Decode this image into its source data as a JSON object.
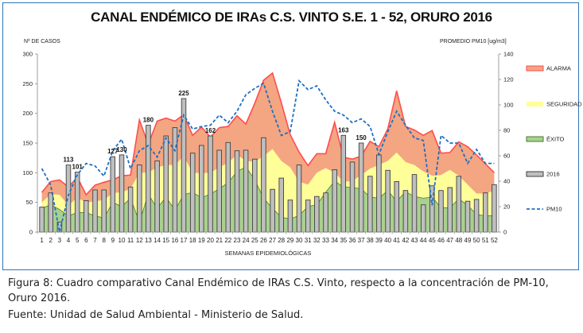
{
  "chart_data": {
    "type": "area+bar+line",
    "title": "CANAL ENDÉMICO DE IRAs C.S. VINTO S.E. 1 - 52,  ORURO 2016",
    "ylabel": "Nº DE CASOS",
    "y2label": "PROMEDIO PM10 [ug/m3]",
    "xlabel": "SEMANAS EPIDEMIOLÓGICAS",
    "ylim": [
      0,
      300
    ],
    "y2lim": [
      0,
      140
    ],
    "yticks": [
      0,
      50,
      100,
      150,
      200,
      250,
      300
    ],
    "y2ticks": [
      0,
      20,
      40,
      60,
      80,
      100,
      120,
      140
    ],
    "categories": [
      1,
      2,
      3,
      4,
      5,
      6,
      7,
      8,
      9,
      10,
      11,
      12,
      13,
      14,
      15,
      16,
      17,
      18,
      19,
      20,
      21,
      22,
      23,
      24,
      25,
      26,
      27,
      28,
      29,
      30,
      31,
      32,
      33,
      34,
      35,
      36,
      37,
      38,
      39,
      40,
      41,
      42,
      43,
      44,
      45,
      46,
      47,
      48,
      49,
      50,
      51,
      52
    ],
    "legend_position": "right",
    "series": [
      {
        "name": "ALARMA",
        "kind": "area",
        "color": "#f4a582",
        "stroke": "#ff4d4d",
        "values": [
          67,
          85,
          88,
          76,
          92,
          63,
          79,
          84,
          88,
          95,
          96,
          189,
          148,
          187,
          192,
          187,
          198,
          163,
          177,
          160,
          176,
          178,
          196,
          182,
          217,
          256,
          268,
          218,
          164,
          135,
          112,
          132,
          132,
          185,
          126,
          123,
          128,
          153,
          144,
          174,
          238,
          178,
          172,
          163,
          171,
          133,
          134,
          152,
          144,
          130,
          115,
          100
        ]
      },
      {
        "name": "SEGURIDAD",
        "kind": "area",
        "color": "#ffff99",
        "values": [
          50,
          64,
          63,
          45,
          58,
          50,
          52,
          54,
          66,
          67,
          73,
          100,
          100,
          109,
          113,
          113,
          128,
          100,
          99,
          100,
          109,
          117,
          130,
          120,
          118,
          128,
          140,
          120,
          109,
          85,
          80,
          100,
          108,
          100,
          85,
          86,
          96,
          107,
          113,
          120,
          134,
          118,
          113,
          102,
          95,
          96,
          105,
          95,
          80,
          65,
          65,
          70
        ]
      },
      {
        "name": "ÉXITO",
        "kind": "area",
        "color": "#a9d18e",
        "stroke": "#4e7a2e",
        "values": [
          40,
          46,
          38,
          27,
          33,
          33,
          27,
          24,
          50,
          43,
          57,
          17,
          64,
          40,
          59,
          37,
          63,
          67,
          58,
          64,
          73,
          83,
          102,
          110,
          88,
          57,
          40,
          25,
          22,
          28,
          43,
          46,
          67,
          86,
          76,
          75,
          73,
          59,
          57,
          70,
          52,
          68,
          60,
          57,
          59,
          41,
          41,
          56,
          45,
          30,
          27,
          28
        ]
      },
      {
        "name": "2016",
        "kind": "bar",
        "color": "#bfbfbf",
        "stroke": "#404040",
        "values": [
          42,
          66,
          17,
          113,
          101,
          53,
          71,
          71,
          127,
          130,
          76,
          113,
          180,
          120,
          162,
          176,
          225,
          133,
          146,
          162,
          138,
          151,
          137,
          138,
          123,
          159,
          72,
          91,
          54,
          113,
          54,
          60,
          66,
          105,
          163,
          118,
          150,
          94,
          130,
          104,
          85,
          70,
          97,
          46,
          78,
          70,
          75,
          94,
          52,
          55,
          66,
          80
        ]
      },
      {
        "name": "PM10",
        "kind": "line",
        "axis": "right",
        "color": "#1f6fc0",
        "values": [
          50,
          37,
          0,
          29,
          45,
          54,
          52,
          44,
          64,
          73,
          50,
          64,
          68,
          59,
          74,
          64,
          92,
          81,
          83,
          84,
          92,
          86,
          95,
          108,
          113,
          117,
          95,
          76,
          79,
          119,
          112,
          115,
          104,
          95,
          92,
          86,
          89,
          83,
          61,
          79,
          95,
          84,
          74,
          72,
          21,
          76,
          70,
          70,
          54,
          65,
          54,
          54
        ]
      }
    ],
    "data_labels": [
      {
        "week": 4,
        "text": "113"
      },
      {
        "week": 5,
        "text": "101"
      },
      {
        "week": 9,
        "text": "127"
      },
      {
        "week": 10,
        "text": "130"
      },
      {
        "week": 13,
        "text": "180"
      },
      {
        "week": 17,
        "text": "225"
      },
      {
        "week": 20,
        "text": "162"
      },
      {
        "week": 35,
        "text": "163"
      },
      {
        "week": 37,
        "text": "150"
      }
    ]
  },
  "caption": {
    "line1": "Figura 8: Cuadro comparativo Canal Endémico de IRAs C.S. Vinto, respecto a la concentración de PM-10,",
    "line2": "Oruro 2016.",
    "source": "Fuente: Unidad de Salud Ambiental - Ministerio de Salud."
  }
}
